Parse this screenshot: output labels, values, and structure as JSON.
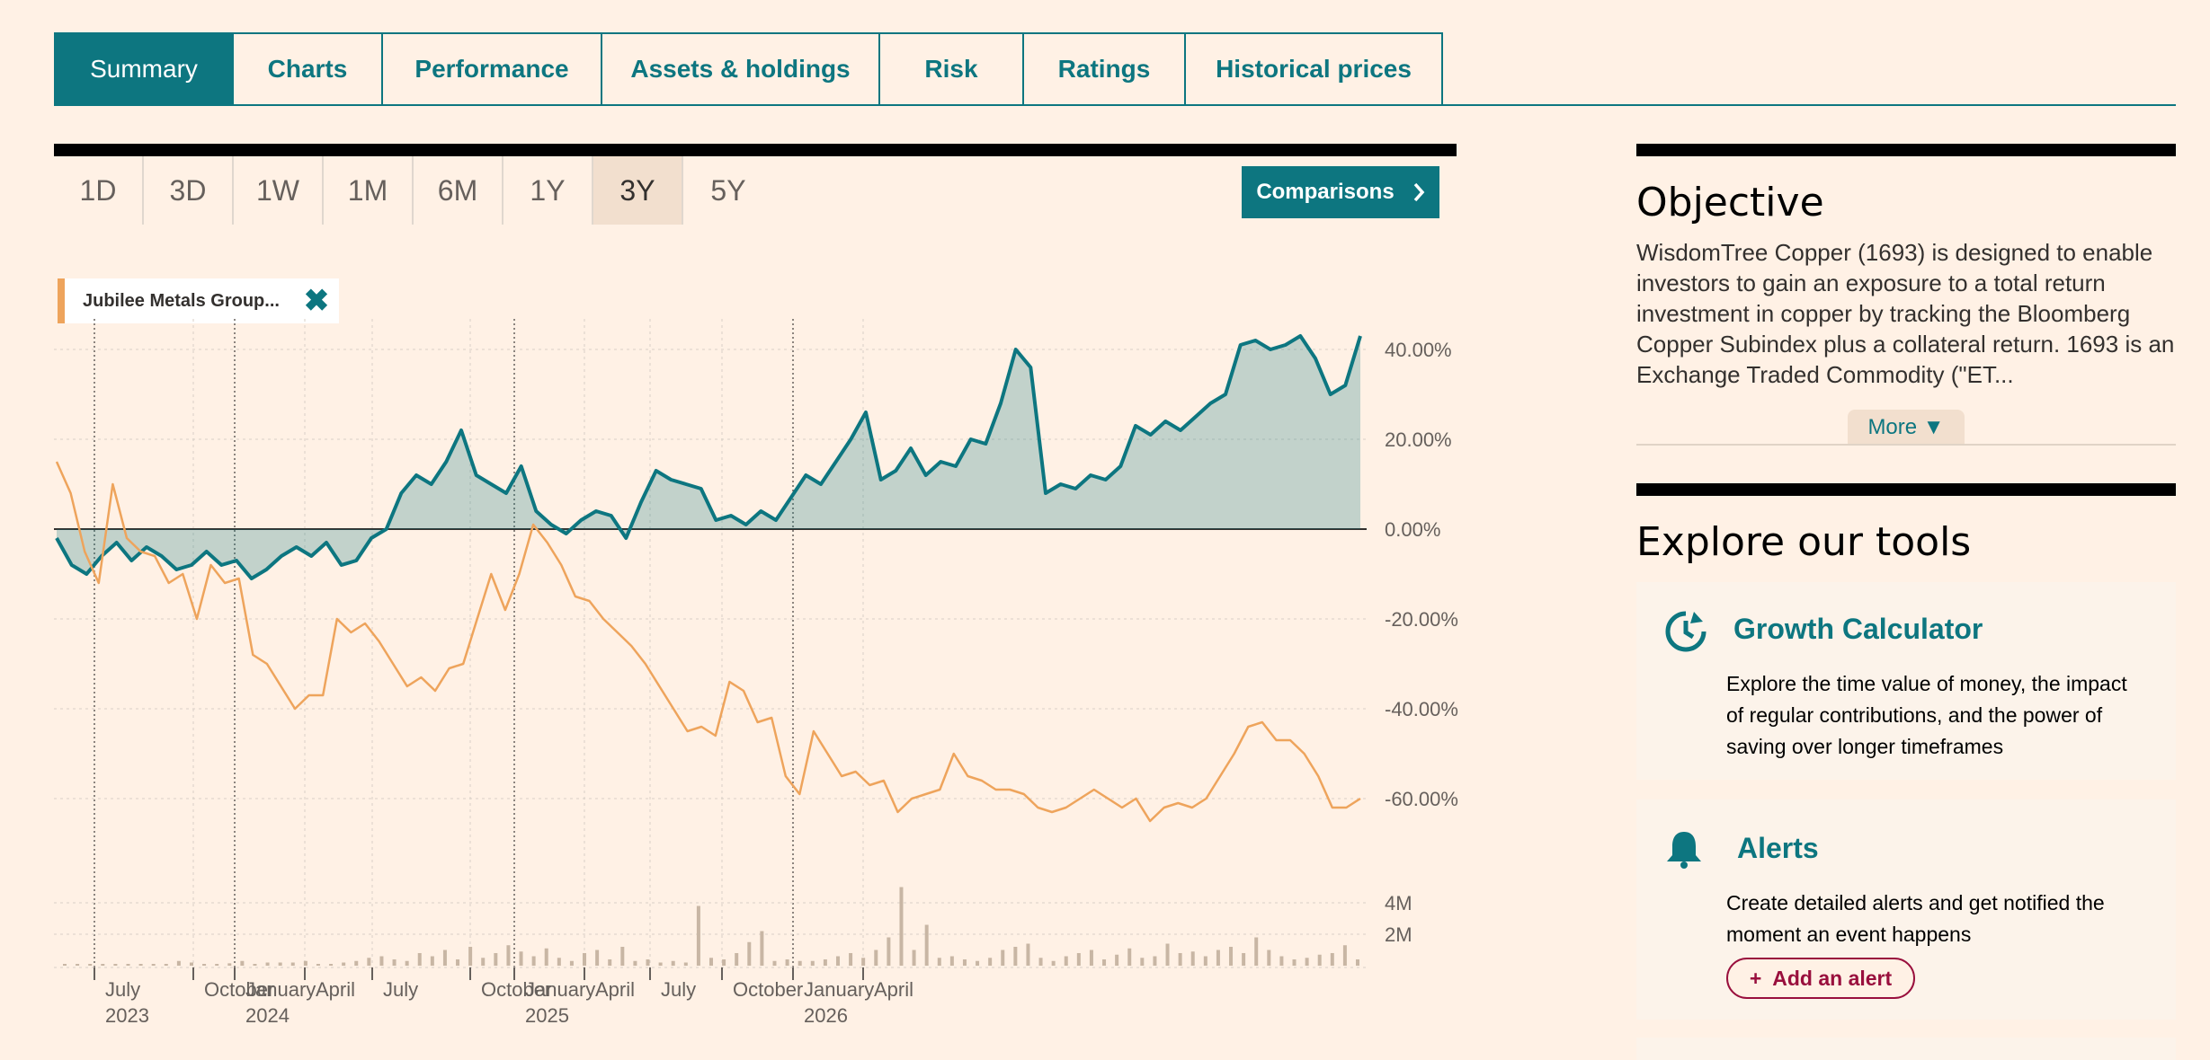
{
  "tabs": [
    {
      "label": "Summary",
      "active": true
    },
    {
      "label": "Charts"
    },
    {
      "label": "Performance"
    },
    {
      "label": "Assets & holdings"
    },
    {
      "label": "Risk"
    },
    {
      "label": "Ratings"
    },
    {
      "label": "Historical prices"
    }
  ],
  "ranges": [
    {
      "label": "1D"
    },
    {
      "label": "3D"
    },
    {
      "label": "1W"
    },
    {
      "label": "1M"
    },
    {
      "label": "6M"
    },
    {
      "label": "1Y"
    },
    {
      "label": "3Y",
      "active": true
    },
    {
      "label": "5Y"
    }
  ],
  "comparisons_label": "Comparisons",
  "comparisons_icon": "chevron-right-icon",
  "legend_chip": {
    "name": "Jubilee Metals Group...",
    "close_icon": "close-icon",
    "color": "#eea45c"
  },
  "chart_data": {
    "type": "line",
    "x_range": [
      "2023-04",
      "2026-04"
    ],
    "x_ticks": [
      {
        "month": "July",
        "year": "2023"
      },
      {
        "month": "October",
        "year": ""
      },
      {
        "month": "January",
        "year": "2024"
      },
      {
        "month": "April",
        "year": ""
      },
      {
        "month": "July",
        "year": ""
      },
      {
        "month": "October",
        "year": ""
      },
      {
        "month": "January",
        "year": "2025"
      },
      {
        "month": "April",
        "year": ""
      },
      {
        "month": "July",
        "year": ""
      },
      {
        "month": "October",
        "year": ""
      },
      {
        "month": "January",
        "year": "2026"
      },
      {
        "month": "April",
        "year": ""
      }
    ],
    "y_ticks": [
      "40.00%",
      "20.00%",
      "0.00%",
      "-20.00%",
      "-40.00%",
      "-60.00%"
    ],
    "ylim": [
      -60,
      45
    ],
    "volume_ticks": [
      "4M",
      "2M"
    ],
    "grid": true,
    "series": [
      {
        "color": "#0d7680",
        "fill": "#0d7680",
        "values": [
          -2,
          -8,
          -10,
          -6,
          -3,
          -7,
          -4,
          -6,
          -9,
          -8,
          -5,
          -8,
          -7,
          -11,
          -9,
          -6,
          -4,
          -6,
          -3,
          -8,
          -7,
          -2,
          0,
          8,
          12,
          10,
          15,
          22,
          12,
          10,
          8,
          14,
          4,
          1,
          -1,
          2,
          4,
          3,
          -2,
          6,
          13,
          11,
          10,
          9,
          2,
          3,
          1,
          4,
          2,
          7,
          12,
          10,
          15,
          20,
          26,
          11,
          13,
          18,
          12,
          15,
          14,
          20,
          19,
          28,
          40,
          36,
          8,
          10,
          9,
          12,
          11,
          14,
          23,
          21,
          24,
          22,
          25,
          28,
          30,
          41,
          42,
          40,
          41,
          43,
          38,
          30,
          32,
          43
        ]
      },
      {
        "color": "#eea45c",
        "values": [
          15,
          8,
          -5,
          -12,
          10,
          -2,
          -5,
          -6,
          -12,
          -10,
          -20,
          -8,
          -12,
          -11,
          -28,
          -30,
          -35,
          -40,
          -37,
          -37,
          -20,
          -23,
          -21,
          -25,
          -30,
          -35,
          -33,
          -36,
          -31,
          -30,
          -20,
          -10,
          -18,
          -10,
          1,
          -3,
          -8,
          -15,
          -16,
          -20,
          -23,
          -26,
          -30,
          -35,
          -40,
          -45,
          -44,
          -46,
          -34,
          -36,
          -43,
          -42,
          -55,
          -59,
          -45,
          -50,
          -55,
          -54,
          -57,
          -56,
          -63,
          -60,
          -59,
          -58,
          -50,
          -55,
          -56,
          -58,
          -58,
          -59,
          -62,
          -63,
          -62,
          -60,
          -58,
          -60,
          -62,
          -60,
          -65,
          -62,
          -61,
          -62,
          -60,
          -55,
          -50,
          -44,
          -43,
          -47,
          -47,
          -50,
          -55,
          -62,
          -62,
          -60
        ]
      }
    ],
    "volume": [
      0.1,
      0.1,
      0.1,
      0.05,
      0.05,
      0.1,
      0.1,
      0.1,
      0.1,
      0.3,
      0.2,
      0.1,
      0.1,
      0.15,
      0.3,
      0.1,
      0.2,
      0.2,
      0.2,
      0.3,
      0.1,
      0.1,
      0.2,
      0.3,
      0.5,
      0.6,
      0.4,
      0.3,
      0.8,
      0.6,
      1.0,
      0.4,
      1.2,
      0.5,
      0.8,
      1.3,
      0.9,
      0.6,
      1.1,
      0.5,
      0.3,
      0.8,
      1.0,
      0.4,
      1.2,
      0.3,
      0.4,
      0.2,
      0.3,
      0.2,
      3.8,
      0.5,
      0.4,
      0.8,
      1.5,
      2.2,
      0.3,
      0.4,
      0.3,
      0.3,
      0.4,
      0.6,
      0.8,
      0.5,
      1.0,
      1.8,
      5.0,
      1.0,
      2.6,
      0.5,
      0.6,
      0.4,
      0.3,
      0.5,
      1.0,
      1.2,
      1.4,
      0.5,
      0.3,
      0.6,
      0.8,
      1.0,
      0.4,
      0.7,
      1.1,
      0.5,
      0.6,
      1.4,
      0.8,
      0.9,
      0.6,
      1.0,
      1.2,
      0.8,
      1.8,
      1.0,
      0.6,
      0.4,
      0.5,
      0.7,
      0.8,
      1.3,
      0.4
    ]
  },
  "objective": {
    "title": "Objective",
    "text": "WisdomTree Copper (1693) is designed to enable investors to gain an exposure to a total return investment in copper by tracking the Bloomberg Copper Subindex plus a collateral return. 1693 is an Exchange Traded Commodity (\"ET...",
    "more_label": "More ▼"
  },
  "tools": {
    "title": "Explore our tools",
    "growth": {
      "icon": "clock-refresh-icon",
      "title": "Growth Calculator",
      "text": "Explore the time value of money, the impact of regular contributions, and the power of saving over longer timeframes"
    },
    "alerts": {
      "icon": "bell-icon",
      "title": "Alerts",
      "text": "Create detailed alerts and get notified the moment an event happens",
      "button_label": "Add an alert",
      "button_icon": "plus-icon"
    }
  }
}
